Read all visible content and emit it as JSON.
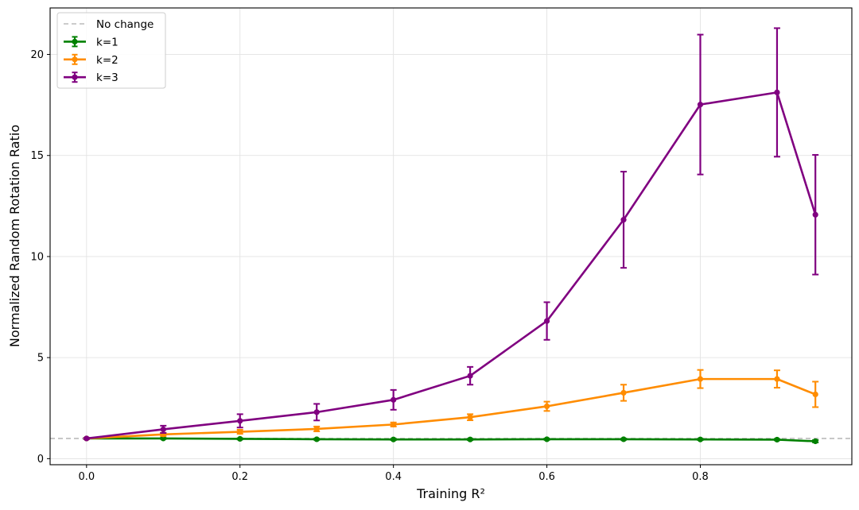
{
  "chart_data": {
    "type": "line",
    "title": "",
    "xlabel": "Training R²",
    "ylabel": "Normalized Random Rotation Ratio",
    "xlim": [
      -0.0475,
      0.9975
    ],
    "ylim": [
      -0.3,
      22.3
    ],
    "xticks": [
      0.0,
      0.2,
      0.4,
      0.6,
      0.8
    ],
    "xtick_labels": [
      "0.0",
      "0.2",
      "0.4",
      "0.6",
      "0.8"
    ],
    "yticks": [
      0,
      5,
      10,
      15,
      20
    ],
    "ytick_labels": [
      "0",
      "5",
      "10",
      "15",
      "20"
    ],
    "grid": true,
    "legend_position": "upper-left",
    "reference_line": {
      "label": "No change",
      "y": 1,
      "color": "#bbbbbb",
      "style": "dashed"
    },
    "x": [
      0.0,
      0.1,
      0.2,
      0.3,
      0.4,
      0.5,
      0.6,
      0.7,
      0.8,
      0.9,
      0.95
    ],
    "series": [
      {
        "name": "k=1",
        "color": "#008000",
        "values": [
          1.0,
          1.0,
          0.98,
          0.96,
          0.95,
          0.95,
          0.96,
          0.96,
          0.95,
          0.94,
          0.86
        ],
        "errors": [
          0.03,
          0.03,
          0.03,
          0.03,
          0.03,
          0.03,
          0.03,
          0.03,
          0.03,
          0.03,
          0.06
        ]
      },
      {
        "name": "k=2",
        "color": "#ff8c00",
        "values": [
          1.0,
          1.2,
          1.33,
          1.47,
          1.69,
          2.05,
          2.59,
          3.26,
          3.94,
          3.94,
          3.18
        ],
        "errors": [
          0.03,
          0.08,
          0.1,
          0.12,
          0.1,
          0.15,
          0.23,
          0.4,
          0.45,
          0.43,
          0.63
        ]
      },
      {
        "name": "k=3",
        "color": "#800080",
        "values": [
          1.0,
          1.45,
          1.87,
          2.3,
          2.91,
          4.1,
          6.81,
          11.82,
          17.52,
          18.12,
          12.07
        ],
        "errors": [
          0.03,
          0.18,
          0.33,
          0.41,
          0.49,
          0.44,
          0.93,
          2.38,
          3.46,
          3.18,
          2.96
        ]
      }
    ]
  }
}
